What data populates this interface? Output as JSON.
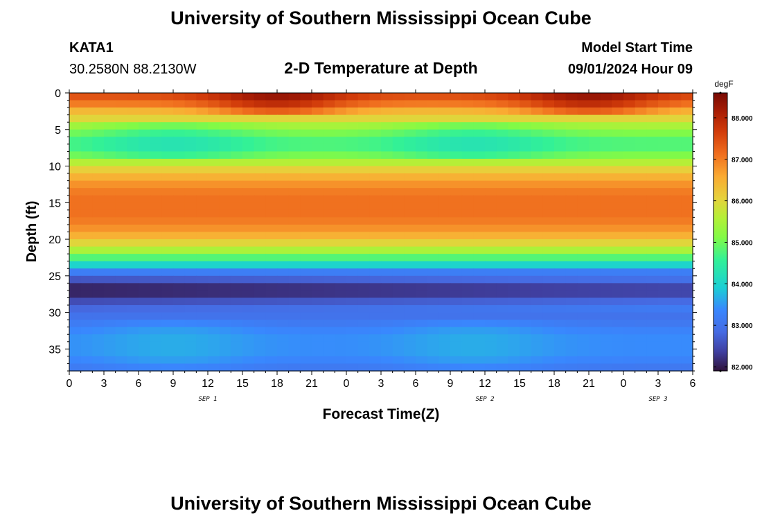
{
  "page": {
    "main_title": "University of Southern Mississippi Ocean Cube",
    "footer_title": "University of Southern Mississippi Ocean Cube",
    "station_id": "KATA1",
    "station_coords": "30.2580N  88.2130W",
    "model_start_label": "Model Start Time",
    "model_start_value": "09/01/2024 Hour 09"
  },
  "chart_data": {
    "type": "heatmap",
    "title": "2-D Temperature at Depth",
    "xlabel": "Forecast Time(Z)",
    "ylabel": "Depth (ft)",
    "colorbar_unit": "degF",
    "x_hours": [
      0,
      3,
      6,
      9,
      12,
      15,
      18,
      21,
      24,
      27,
      30,
      33,
      36,
      39,
      42,
      45,
      48,
      51,
      54
    ],
    "x_tick_labels": [
      "0",
      "3",
      "6",
      "9",
      "12",
      "15",
      "18",
      "21",
      "0",
      "3",
      "6",
      "9",
      "12",
      "15",
      "18",
      "21",
      "0",
      "3",
      "6"
    ],
    "date_labels": [
      {
        "hour": 12,
        "text": "SEP 1"
      },
      {
        "hour": 36,
        "text": "SEP 2"
      },
      {
        "hour": 51,
        "text": "SEP 3"
      }
    ],
    "depth_ft": [
      0,
      1,
      2,
      3,
      4,
      5,
      6,
      7,
      8,
      9,
      10,
      11,
      12,
      13,
      14,
      15,
      16,
      17,
      18,
      19,
      20,
      21,
      22,
      23,
      24,
      25,
      26,
      27,
      28,
      29,
      30,
      31,
      32,
      33,
      34,
      35,
      36,
      37
    ],
    "y_ticks": [
      0,
      5,
      10,
      15,
      20,
      25,
      30,
      35
    ],
    "ylim": [
      0,
      38
    ],
    "xlim": [
      0,
      54
    ],
    "temp_degF_by_depth": [
      87.6,
      87.2,
      86.6,
      86.0,
      85.5,
      85.1,
      84.8,
      84.8,
      85.1,
      85.6,
      86.1,
      86.5,
      86.8,
      87.0,
      87.1,
      87.1,
      87.1,
      87.0,
      86.8,
      86.5,
      86.0,
      85.5,
      84.8,
      84.0,
      83.2,
      82.6,
      82.1,
      82.1,
      82.5,
      82.8,
      83.0,
      83.1,
      83.3,
      83.4,
      83.4,
      83.4,
      83.3,
      83.1
    ],
    "time_variation_degF": {
      "surface_peak_hours": [
        18,
        45
      ],
      "mid_layer_cool_hours": [
        9,
        35
      ]
    },
    "colorbar": {
      "min": 81.9,
      "max": 88.6,
      "ticks": [
        82,
        83,
        84,
        85,
        86,
        87,
        88
      ],
      "tick_labels": [
        "82.000",
        "83.000",
        "84.000",
        "85.000",
        "86.000",
        "87.000",
        "88.000"
      ]
    }
  }
}
